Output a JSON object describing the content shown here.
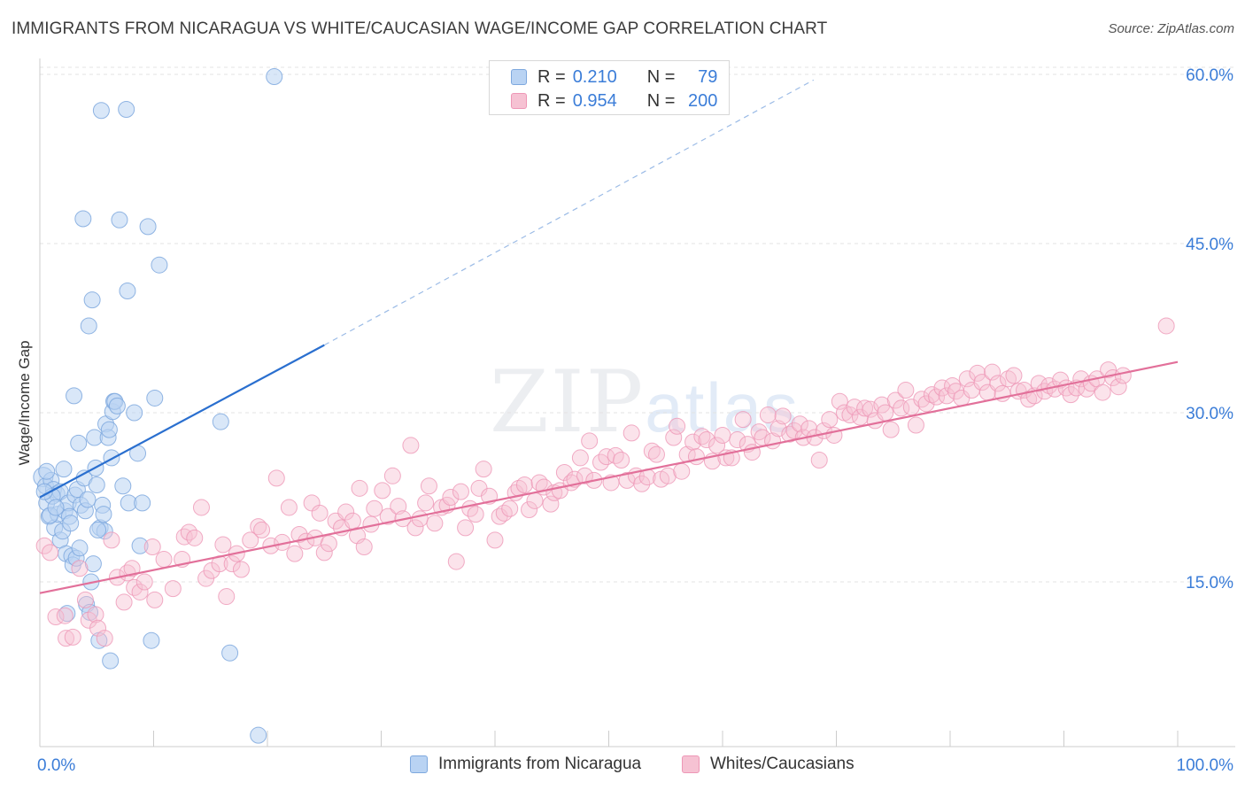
{
  "title": "IMMIGRANTS FROM NICARAGUA VS WHITE/CAUCASIAN WAGE/INCOME GAP CORRELATION CHART",
  "source": "Source: ZipAtlas.com",
  "watermark": {
    "zip": "ZIP",
    "atlas": "atlas"
  },
  "legend": {
    "r_label": "R =",
    "n_label": "N =",
    "series": [
      {
        "name": "Immigrants from Nicaragua",
        "r": "0.210",
        "n": "79"
      },
      {
        "name": "Whites/Caucasians",
        "r": "0.954",
        "n": "200"
      }
    ]
  },
  "colors": {
    "blue_fill": "#b9d3f3",
    "blue_stroke": "#7ea8de",
    "blue_line": "#2a6fcf",
    "pink_fill": "#f6c2d3",
    "pink_stroke": "#ee97b6",
    "pink_line": "#e2709a",
    "tick_label": "#3b7dd8",
    "grid": "#e3e3e3"
  },
  "chart_data": {
    "type": "scatter",
    "title": "IMMIGRANTS FROM NICARAGUA VS WHITE/CAUCASIAN WAGE/INCOME GAP CORRELATION CHART",
    "xlabel": "",
    "ylabel": "Wage/Income Gap",
    "xlim": [
      0,
      100
    ],
    "ylim": [
      0,
      62
    ],
    "x_ticks": [
      "0.0%",
      "100.0%"
    ],
    "y_ticks": [
      {
        "value": 15,
        "label": "15.0%"
      },
      {
        "value": 30,
        "label": "30.0%"
      },
      {
        "value": 45,
        "label": "45.0%"
      },
      {
        "value": 60,
        "label": "60.0%"
      }
    ],
    "grid": true,
    "series": [
      {
        "name": "Immigrants from Nicaragua",
        "trend": {
          "x0": 0,
          "y0": 22.5,
          "x1": 25,
          "y1": 36.0,
          "dash_to_x": 68,
          "dash_to_y": 59.5
        },
        "points": [
          [
            0.3,
            24.3
          ],
          [
            0.5,
            23.5
          ],
          [
            0.6,
            22.0
          ],
          [
            0.8,
            20.8
          ],
          [
            1.0,
            24.0
          ],
          [
            1.2,
            23.2
          ],
          [
            1.3,
            19.8
          ],
          [
            1.5,
            22.8
          ],
          [
            1.6,
            21.0
          ],
          [
            1.8,
            23.0
          ],
          [
            1.8,
            18.7
          ],
          [
            2.0,
            19.5
          ],
          [
            2.2,
            21.3
          ],
          [
            2.3,
            17.5
          ],
          [
            2.4,
            12.2
          ],
          [
            2.5,
            22.0
          ],
          [
            2.6,
            20.8
          ],
          [
            2.8,
            17.3
          ],
          [
            2.9,
            16.5
          ],
          [
            3.0,
            31.5
          ],
          [
            3.1,
            22.7
          ],
          [
            3.2,
            17.1
          ],
          [
            3.3,
            23.2
          ],
          [
            3.4,
            27.3
          ],
          [
            3.6,
            21.8
          ],
          [
            3.8,
            47.2
          ],
          [
            3.9,
            24.2
          ],
          [
            4.0,
            21.3
          ],
          [
            4.1,
            13.0
          ],
          [
            4.2,
            22.3
          ],
          [
            4.3,
            37.7
          ],
          [
            4.4,
            12.3
          ],
          [
            4.5,
            15.0
          ],
          [
            4.6,
            40.0
          ],
          [
            4.7,
            16.6
          ],
          [
            4.8,
            27.8
          ],
          [
            4.9,
            25.1
          ],
          [
            5.0,
            23.6
          ],
          [
            5.2,
            9.8
          ],
          [
            5.3,
            19.8
          ],
          [
            5.4,
            56.8
          ],
          [
            5.5,
            21.8
          ],
          [
            5.6,
            21.0
          ],
          [
            5.7,
            19.5
          ],
          [
            5.8,
            29.0
          ],
          [
            6.0,
            27.8
          ],
          [
            6.2,
            8.0
          ],
          [
            6.3,
            26.0
          ],
          [
            6.4,
            30.1
          ],
          [
            6.5,
            31.0
          ],
          [
            6.6,
            31.0
          ],
          [
            6.8,
            30.6
          ],
          [
            7.0,
            47.1
          ],
          [
            7.6,
            56.9
          ],
          [
            7.7,
            40.8
          ],
          [
            7.8,
            22.0
          ],
          [
            8.3,
            30.0
          ],
          [
            8.6,
            26.4
          ],
          [
            8.8,
            18.2
          ],
          [
            9.0,
            22.0
          ],
          [
            9.5,
            46.5
          ],
          [
            9.8,
            9.8
          ],
          [
            10.1,
            31.3
          ],
          [
            10.5,
            43.1
          ],
          [
            15.9,
            29.2
          ],
          [
            16.7,
            8.7
          ],
          [
            19.2,
            1.4
          ],
          [
            20.6,
            59.8
          ],
          [
            0.6,
            24.8
          ],
          [
            1.1,
            22.6
          ],
          [
            2.7,
            20.2
          ],
          [
            3.5,
            18.0
          ],
          [
            5.1,
            19.6
          ],
          [
            0.9,
            20.9
          ],
          [
            1.4,
            21.6
          ],
          [
            2.1,
            25.0
          ],
          [
            0.4,
            23.0
          ],
          [
            6.1,
            28.5
          ],
          [
            7.3,
            23.5
          ]
        ]
      },
      {
        "name": "Whites/Caucasians",
        "trend": {
          "x0": 0,
          "y0": 14.0,
          "x1": 100,
          "y1": 34.5
        },
        "points": [
          [
            0.4,
            18.2
          ],
          [
            0.9,
            17.6
          ],
          [
            1.4,
            11.9
          ],
          [
            2.2,
            12.0
          ],
          [
            2.3,
            10.0
          ],
          [
            2.9,
            10.1
          ],
          [
            3.5,
            16.2
          ],
          [
            4.0,
            13.4
          ],
          [
            4.3,
            11.6
          ],
          [
            4.9,
            12.1
          ],
          [
            5.1,
            10.9
          ],
          [
            5.7,
            10.0
          ],
          [
            6.3,
            18.7
          ],
          [
            6.8,
            15.4
          ],
          [
            7.4,
            13.2
          ],
          [
            7.7,
            15.8
          ],
          [
            8.1,
            16.2
          ],
          [
            8.3,
            14.5
          ],
          [
            8.8,
            14.1
          ],
          [
            9.2,
            15.0
          ],
          [
            9.9,
            18.1
          ],
          [
            10.1,
            13.4
          ],
          [
            10.9,
            17.0
          ],
          [
            11.7,
            14.4
          ],
          [
            12.5,
            17.0
          ],
          [
            12.7,
            19.0
          ],
          [
            13.1,
            19.4
          ],
          [
            13.6,
            18.9
          ],
          [
            14.2,
            21.6
          ],
          [
            14.6,
            15.3
          ],
          [
            15.1,
            16.0
          ],
          [
            15.8,
            16.6
          ],
          [
            16.1,
            18.3
          ],
          [
            16.4,
            13.7
          ],
          [
            16.9,
            16.6
          ],
          [
            17.3,
            17.5
          ],
          [
            17.7,
            16.1
          ],
          [
            18.5,
            18.7
          ],
          [
            19.2,
            19.9
          ],
          [
            19.5,
            19.6
          ],
          [
            20.3,
            18.2
          ],
          [
            20.8,
            24.2
          ],
          [
            21.3,
            18.5
          ],
          [
            21.9,
            21.6
          ],
          [
            22.4,
            17.5
          ],
          [
            22.8,
            19.2
          ],
          [
            23.4,
            18.6
          ],
          [
            23.9,
            22.0
          ],
          [
            24.2,
            18.9
          ],
          [
            24.6,
            21.1
          ],
          [
            25.0,
            17.6
          ],
          [
            25.4,
            18.4
          ],
          [
            26.0,
            20.4
          ],
          [
            26.5,
            19.8
          ],
          [
            26.9,
            21.2
          ],
          [
            27.5,
            20.4
          ],
          [
            27.9,
            19.1
          ],
          [
            28.1,
            23.3
          ],
          [
            28.5,
            18.1
          ],
          [
            29.1,
            20.1
          ],
          [
            29.4,
            21.5
          ],
          [
            30.1,
            23.1
          ],
          [
            30.6,
            20.8
          ],
          [
            31.0,
            24.4
          ],
          [
            31.5,
            21.7
          ],
          [
            31.9,
            20.6
          ],
          [
            32.6,
            27.1
          ],
          [
            33.0,
            19.8
          ],
          [
            33.4,
            20.6
          ],
          [
            33.9,
            22.0
          ],
          [
            34.2,
            23.5
          ],
          [
            34.7,
            20.2
          ],
          [
            35.3,
            21.6
          ],
          [
            35.8,
            21.8
          ],
          [
            36.1,
            22.5
          ],
          [
            36.6,
            16.8
          ],
          [
            37.0,
            23.0
          ],
          [
            37.4,
            19.8
          ],
          [
            37.8,
            21.5
          ],
          [
            38.3,
            21.0
          ],
          [
            38.6,
            23.3
          ],
          [
            39.0,
            25.0
          ],
          [
            39.5,
            22.6
          ],
          [
            40.0,
            18.7
          ],
          [
            40.4,
            20.8
          ],
          [
            40.8,
            21.1
          ],
          [
            41.3,
            21.5
          ],
          [
            41.8,
            22.9
          ],
          [
            42.1,
            23.3
          ],
          [
            42.6,
            23.6
          ],
          [
            43.0,
            21.4
          ],
          [
            43.5,
            22.2
          ],
          [
            43.9,
            23.8
          ],
          [
            44.3,
            23.4
          ],
          [
            44.9,
            21.9
          ],
          [
            45.2,
            22.9
          ],
          [
            45.7,
            23.1
          ],
          [
            46.1,
            24.7
          ],
          [
            46.7,
            23.8
          ],
          [
            47.0,
            24.1
          ],
          [
            47.5,
            26.0
          ],
          [
            47.9,
            24.4
          ],
          [
            48.3,
            27.5
          ],
          [
            48.7,
            24.0
          ],
          [
            49.3,
            25.6
          ],
          [
            49.8,
            26.1
          ],
          [
            50.2,
            23.8
          ],
          [
            50.6,
            26.2
          ],
          [
            51.1,
            25.8
          ],
          [
            51.6,
            24.0
          ],
          [
            52.0,
            28.2
          ],
          [
            52.4,
            24.4
          ],
          [
            52.9,
            23.7
          ],
          [
            53.4,
            24.3
          ],
          [
            53.8,
            26.6
          ],
          [
            54.2,
            26.3
          ],
          [
            54.6,
            24.1
          ],
          [
            55.2,
            24.4
          ],
          [
            55.7,
            27.8
          ],
          [
            56.0,
            28.8
          ],
          [
            56.4,
            24.8
          ],
          [
            56.9,
            26.3
          ],
          [
            57.4,
            27.4
          ],
          [
            57.7,
            26.1
          ],
          [
            58.2,
            27.9
          ],
          [
            58.6,
            27.6
          ],
          [
            59.1,
            25.7
          ],
          [
            59.5,
            27.1
          ],
          [
            60.0,
            28.0
          ],
          [
            60.3,
            26.0
          ],
          [
            60.8,
            26.0
          ],
          [
            61.3,
            27.6
          ],
          [
            61.8,
            29.4
          ],
          [
            62.2,
            27.2
          ],
          [
            62.6,
            26.5
          ],
          [
            63.2,
            28.3
          ],
          [
            63.5,
            27.8
          ],
          [
            64.0,
            29.8
          ],
          [
            64.4,
            27.5
          ],
          [
            64.9,
            28.6
          ],
          [
            65.3,
            29.7
          ],
          [
            65.9,
            28.1
          ],
          [
            66.3,
            28.4
          ],
          [
            66.8,
            29.0
          ],
          [
            67.1,
            27.8
          ],
          [
            67.6,
            28.6
          ],
          [
            68.1,
            27.8
          ],
          [
            68.5,
            25.8
          ],
          [
            68.9,
            28.4
          ],
          [
            69.4,
            29.4
          ],
          [
            69.8,
            28.0
          ],
          [
            70.3,
            31.0
          ],
          [
            70.7,
            30.0
          ],
          [
            71.2,
            29.8
          ],
          [
            71.6,
            30.5
          ],
          [
            72.1,
            29.6
          ],
          [
            72.5,
            30.4
          ],
          [
            73.0,
            30.3
          ],
          [
            73.4,
            29.3
          ],
          [
            74.0,
            30.7
          ],
          [
            74.3,
            30.0
          ],
          [
            74.8,
            28.5
          ],
          [
            75.2,
            31.1
          ],
          [
            75.7,
            30.4
          ],
          [
            76.1,
            32.0
          ],
          [
            76.6,
            30.5
          ],
          [
            77.0,
            28.9
          ],
          [
            77.5,
            31.2
          ],
          [
            77.9,
            30.8
          ],
          [
            78.4,
            31.6
          ],
          [
            78.8,
            31.4
          ],
          [
            79.3,
            32.2
          ],
          [
            79.7,
            31.5
          ],
          [
            80.2,
            32.4
          ],
          [
            80.5,
            31.9
          ],
          [
            81.0,
            31.3
          ],
          [
            81.5,
            33.0
          ],
          [
            81.9,
            32.0
          ],
          [
            82.4,
            33.5
          ],
          [
            82.8,
            32.7
          ],
          [
            83.3,
            31.8
          ],
          [
            83.7,
            33.6
          ],
          [
            84.2,
            32.6
          ],
          [
            84.6,
            31.7
          ],
          [
            85.1,
            33.0
          ],
          [
            85.6,
            33.3
          ],
          [
            86.0,
            31.9
          ],
          [
            86.5,
            32.0
          ],
          [
            86.9,
            31.2
          ],
          [
            87.4,
            31.5
          ],
          [
            87.8,
            32.6
          ],
          [
            88.3,
            31.9
          ],
          [
            88.7,
            32.4
          ],
          [
            89.2,
            32.1
          ],
          [
            89.7,
            32.9
          ],
          [
            90.2,
            32.2
          ],
          [
            90.6,
            31.6
          ],
          [
            91.1,
            32.2
          ],
          [
            91.5,
            33.0
          ],
          [
            92.0,
            32.1
          ],
          [
            92.4,
            32.6
          ],
          [
            92.9,
            33.0
          ],
          [
            93.4,
            31.8
          ],
          [
            93.9,
            33.8
          ],
          [
            94.3,
            33.1
          ],
          [
            94.8,
            32.3
          ],
          [
            95.2,
            33.3
          ],
          [
            99.0,
            37.7
          ]
        ]
      }
    ]
  }
}
